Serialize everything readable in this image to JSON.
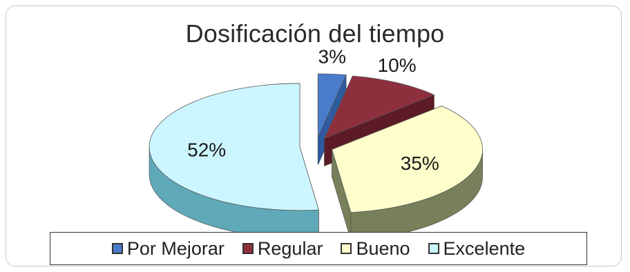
{
  "chart_data": {
    "type": "pie",
    "title": "Dosificación del tiempo",
    "three_d": true,
    "exploded": true,
    "legend_position": "bottom",
    "categories": [
      "Por Mejorar",
      "Regular",
      "Bueno",
      "Excelente"
    ],
    "values": [
      3,
      10,
      35,
      52
    ],
    "labels": [
      "3%",
      "10%",
      "35%",
      "52%"
    ],
    "colors": [
      "#4a7ccc",
      "#8e2f3e",
      "#ffffcc",
      "#ccf6ff"
    ],
    "side_colors": [
      "#2e5aa0",
      "#5c1b26",
      "#77805a",
      "#5fa9b8"
    ]
  }
}
